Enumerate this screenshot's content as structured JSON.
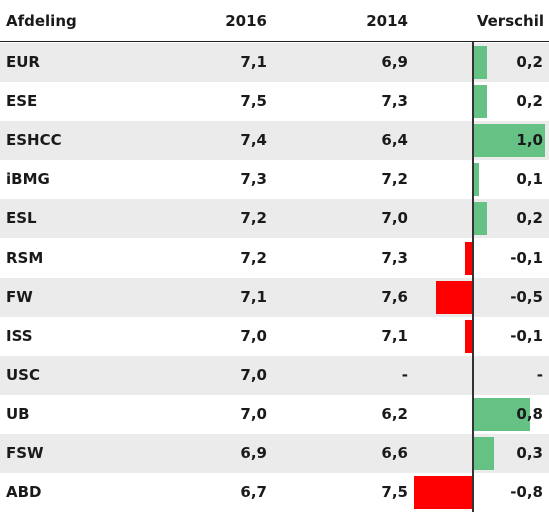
{
  "chart_data": {
    "type": "table",
    "columns": [
      "Afdeling",
      "2016",
      "2014",
      "Verschil"
    ],
    "rows": [
      {
        "name": "EUR",
        "y2016": "7,1",
        "y2014": "6,9",
        "diff": "0,2",
        "value": 0.2
      },
      {
        "name": "ESE",
        "y2016": "7,5",
        "y2014": "7,3",
        "diff": "0,2",
        "value": 0.2
      },
      {
        "name": "ESHCC",
        "y2016": "7,4",
        "y2014": "6,4",
        "diff": "1,0",
        "value": 1.0
      },
      {
        "name": "iBMG",
        "y2016": "7,3",
        "y2014": "7,2",
        "diff": "0,1",
        "value": 0.1
      },
      {
        "name": "ESL",
        "y2016": "7,2",
        "y2014": "7,0",
        "diff": "0,2",
        "value": 0.2
      },
      {
        "name": "RSM",
        "y2016": "7,2",
        "y2014": "7,3",
        "diff": "-0,1",
        "value": -0.1
      },
      {
        "name": "FW",
        "y2016": "7,1",
        "y2014": "7,6",
        "diff": "-0,5",
        "value": -0.5
      },
      {
        "name": "ISS",
        "y2016": "7,0",
        "y2014": "7,1",
        "diff": "-0,1",
        "value": -0.1
      },
      {
        "name": "USC",
        "y2016": "7,0",
        "y2014": "-",
        "diff": "-",
        "value": null
      },
      {
        "name": "UB",
        "y2016": "7,0",
        "y2014": "6,2",
        "diff": "0,8",
        "value": 0.8
      },
      {
        "name": "FSW",
        "y2016": "6,9",
        "y2014": "6,6",
        "diff": "0,3",
        "value": 0.3
      },
      {
        "name": "ABD",
        "y2016": "6,7",
        "y2014": "7,5",
        "diff": "-0,8",
        "value": -0.8
      }
    ],
    "colors": {
      "positive": "#66c184",
      "negative": "#ff0000"
    },
    "header_labels": {
      "name": "Afdeling",
      "y2016": "2016",
      "y2014": "2014",
      "diff": "Verschil"
    }
  }
}
